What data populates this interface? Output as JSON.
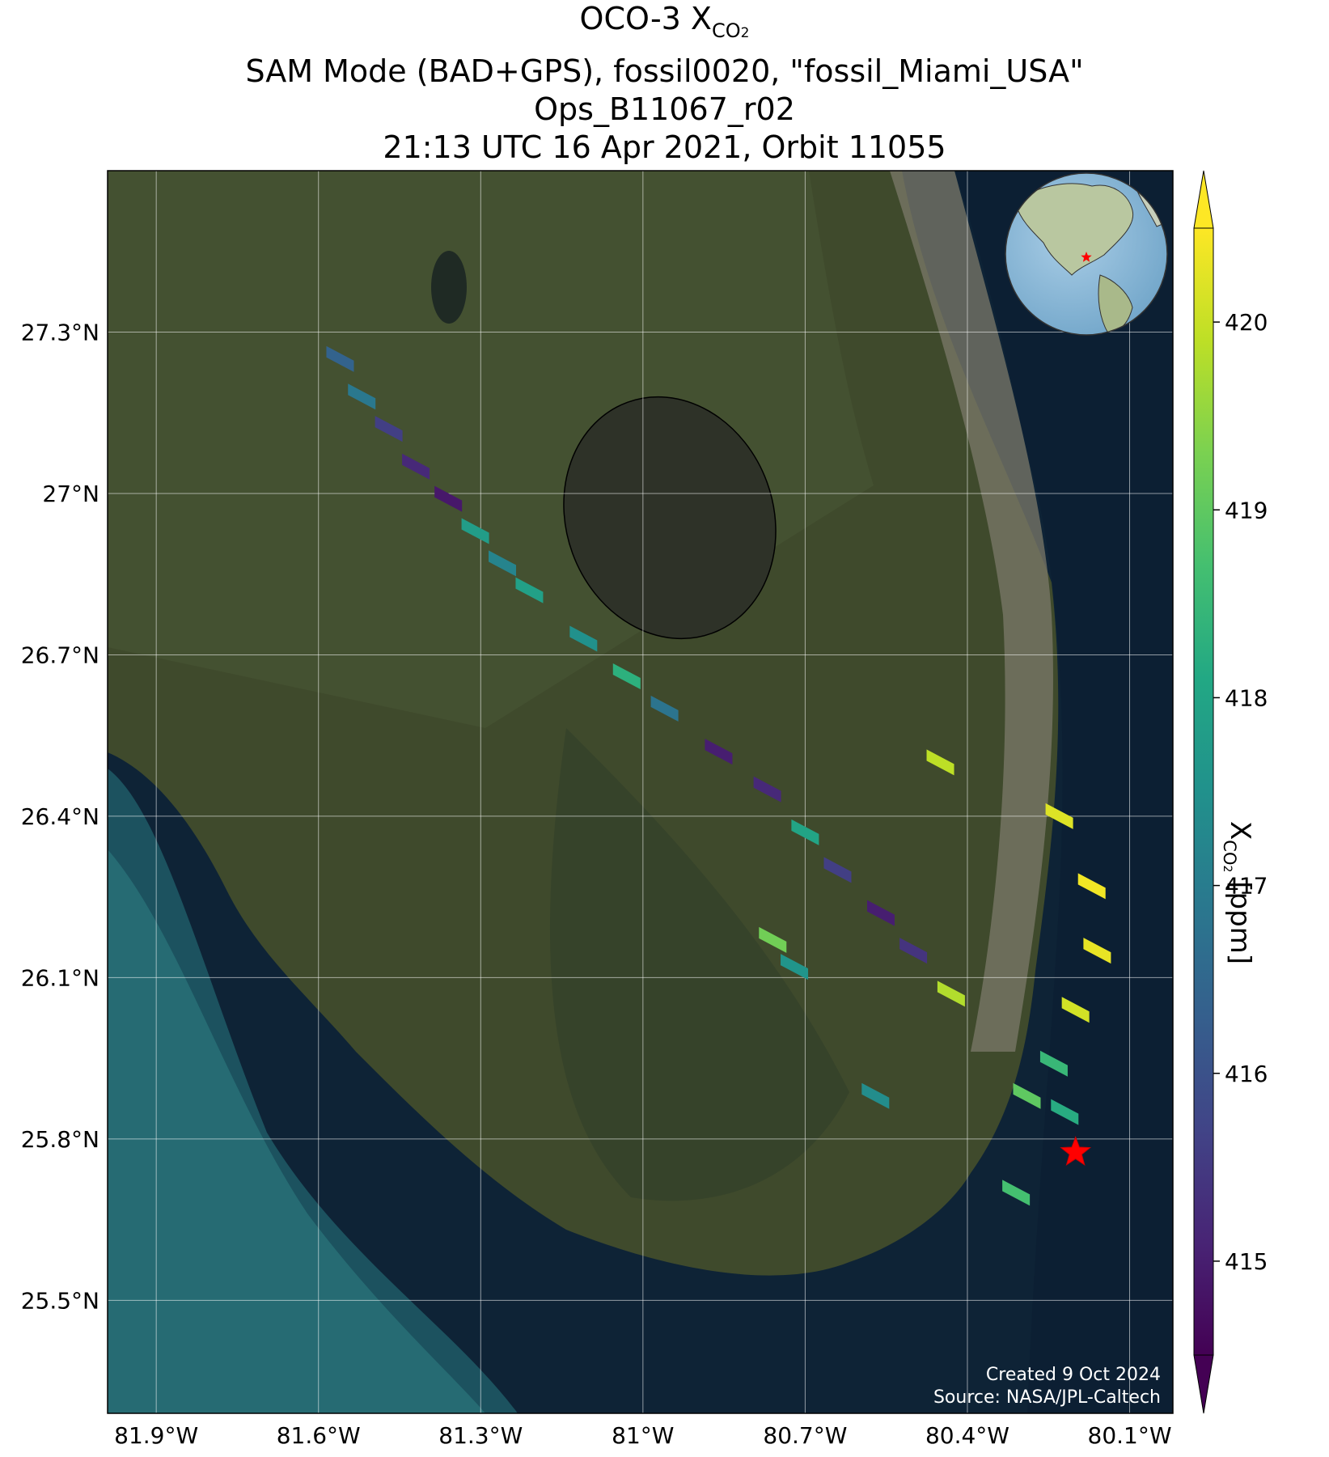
{
  "title": {
    "line1_prefix": "OCO-3 X",
    "line1_sub": "CO",
    "line1_subsub": "2",
    "line2": "SAM Mode (BAD+GPS), fossil0020, \"fossil_Miami_USA\"",
    "line3": "Ops_B11067_r02",
    "line4": "21:13 UTC 16 Apr 2021, Orbit 11055"
  },
  "map": {
    "lon_range": [
      -81.99,
      -80.02
    ],
    "lat_range": [
      25.29,
      27.6
    ],
    "lon_ticks": [
      {
        "value": -81.9,
        "label": "81.9°W"
      },
      {
        "value": -81.6,
        "label": "81.6°W"
      },
      {
        "value": -81.3,
        "label": "81.3°W"
      },
      {
        "value": -81.0,
        "label": "81°W"
      },
      {
        "value": -80.7,
        "label": "80.7°W"
      },
      {
        "value": -80.4,
        "label": "80.4°W"
      },
      {
        "value": -80.1,
        "label": "80.1°W"
      }
    ],
    "lat_ticks": [
      {
        "value": 27.3,
        "label": "27.3°N"
      },
      {
        "value": 27.0,
        "label": "27°N"
      },
      {
        "value": 26.7,
        "label": "26.7°N"
      },
      {
        "value": 26.4,
        "label": "26.4°N"
      },
      {
        "value": 26.1,
        "label": "26.1°N"
      },
      {
        "value": 25.8,
        "label": "25.8°N"
      },
      {
        "value": 25.5,
        "label": "25.5°N"
      }
    ],
    "gridlines": true,
    "target_marker": {
      "lon": -80.2,
      "lat": 25.775,
      "color": "#ff0000",
      "icon": "red-star-icon"
    },
    "inset": "globe-inset (Americas) with red star at target"
  },
  "colorbar": {
    "colormap": "viridis",
    "range": [
      414.5,
      420.5
    ],
    "ticks": [
      415,
      416,
      417,
      418,
      419,
      420
    ],
    "extend": "both",
    "label_prefix": "X",
    "label_sub": "CO",
    "label_subsub": "2",
    "label_suffix": " [ppm]"
  },
  "credits": {
    "line1": "Created 9 Oct 2024",
    "line2": "Source: NASA/JPL-Caltech"
  },
  "soundings": [
    {
      "lon": -81.56,
      "lat": 27.25,
      "xco2": 416.4
    },
    {
      "lon": -81.52,
      "lat": 27.18,
      "xco2": 416.9
    },
    {
      "lon": -81.47,
      "lat": 27.12,
      "xco2": 415.6
    },
    {
      "lon": -81.42,
      "lat": 27.05,
      "xco2": 415.2
    },
    {
      "lon": -81.36,
      "lat": 26.99,
      "xco2": 414.9
    },
    {
      "lon": -81.31,
      "lat": 26.93,
      "xco2": 417.8
    },
    {
      "lon": -81.26,
      "lat": 26.87,
      "xco2": 417.2
    },
    {
      "lon": -81.21,
      "lat": 26.82,
      "xco2": 417.9
    },
    {
      "lon": -81.11,
      "lat": 26.73,
      "xco2": 417.5
    },
    {
      "lon": -81.03,
      "lat": 26.66,
      "xco2": 418.3
    },
    {
      "lon": -80.96,
      "lat": 26.6,
      "xco2": 416.8
    },
    {
      "lon": -80.86,
      "lat": 26.52,
      "xco2": 415.0
    },
    {
      "lon": -80.77,
      "lat": 26.45,
      "xco2": 415.2
    },
    {
      "lon": -80.7,
      "lat": 26.37,
      "xco2": 418.0
    },
    {
      "lon": -80.64,
      "lat": 26.3,
      "xco2": 415.6
    },
    {
      "lon": -80.56,
      "lat": 26.22,
      "xco2": 415.0
    },
    {
      "lon": -80.5,
      "lat": 26.15,
      "xco2": 415.4
    },
    {
      "lon": -80.43,
      "lat": 26.07,
      "xco2": 419.8
    },
    {
      "lon": -80.23,
      "lat": 26.4,
      "xco2": 420.2
    },
    {
      "lon": -80.17,
      "lat": 26.27,
      "xco2": 420.4
    },
    {
      "lon": -80.16,
      "lat": 26.15,
      "xco2": 420.3
    },
    {
      "lon": -80.2,
      "lat": 26.04,
      "xco2": 420.1
    },
    {
      "lon": -80.24,
      "lat": 25.94,
      "xco2": 418.5
    },
    {
      "lon": -80.29,
      "lat": 25.88,
      "xco2": 419.0
    },
    {
      "lon": -80.22,
      "lat": 25.85,
      "xco2": 418.2
    },
    {
      "lon": -80.31,
      "lat": 25.7,
      "xco2": 418.7
    },
    {
      "lon": -80.72,
      "lat": 26.12,
      "xco2": 417.6
    },
    {
      "lon": -80.76,
      "lat": 26.17,
      "xco2": 419.2
    },
    {
      "lon": -80.57,
      "lat": 25.88,
      "xco2": 417.4
    },
    {
      "lon": -80.45,
      "lat": 26.5,
      "xco2": 419.9
    }
  ]
}
